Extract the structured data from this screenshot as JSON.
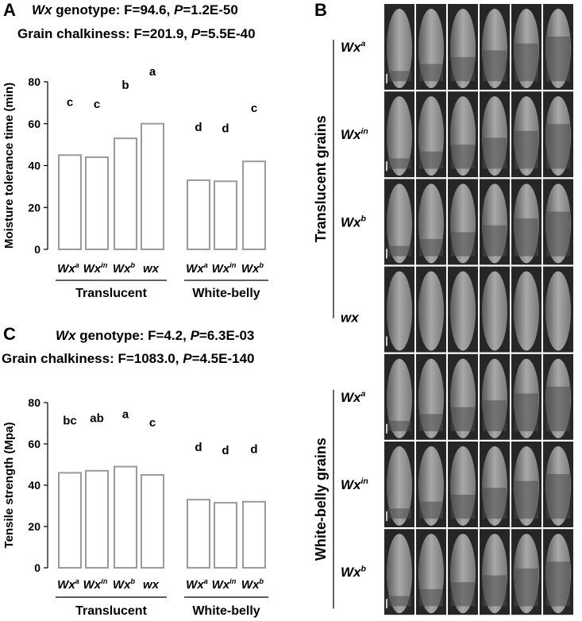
{
  "chart_data": [
    {
      "type": "bar",
      "panel_label": "A",
      "annotations": [
        [
          {
            "text": "Wx",
            "italic": true
          },
          {
            "text": " genotype: F=94.6, ",
            "italic": false
          },
          {
            "text": "P",
            "italic": true
          },
          {
            "text": "=1.2E-50",
            "italic": false
          }
        ],
        [
          {
            "text": "Grain chalkiness: F=201.9, ",
            "italic": false
          },
          {
            "text": "P",
            "italic": true
          },
          {
            "text": "=5.5E-40",
            "italic": false
          }
        ]
      ],
      "ylabel": "Moisture tolerance time (min)",
      "ylim": [
        0,
        80
      ],
      "yticks": [
        0,
        20,
        40,
        60,
        80
      ],
      "color": "#ffffff",
      "edge_color": "#9a9a9a",
      "groups": [
        {
          "name": "Translucent",
          "categories": [
            {
              "base": "Wx",
              "sup": "a"
            },
            {
              "base": "Wx",
              "sup": "in"
            },
            {
              "base": "Wx",
              "sup": "b"
            },
            {
              "base": "wx",
              "sup": null
            }
          ],
          "values": [
            45,
            44,
            53,
            60
          ],
          "letters": [
            "c",
            "c",
            "b",
            "a"
          ]
        },
        {
          "name": "White-belly",
          "categories": [
            {
              "base": "Wx",
              "sup": "a"
            },
            {
              "base": "Wx",
              "sup": "in"
            },
            {
              "base": "Wx",
              "sup": "b"
            }
          ],
          "values": [
            33,
            32.5,
            42
          ],
          "letters": [
            "d",
            "d",
            "c"
          ]
        }
      ]
    },
    {
      "type": "bar",
      "panel_label": "C",
      "annotations": [
        [
          {
            "text": "Wx",
            "italic": true
          },
          {
            "text": " genotype: F=4.2, ",
            "italic": false
          },
          {
            "text": "P",
            "italic": true
          },
          {
            "text": "=6.3E-03",
            "italic": false
          }
        ],
        [
          {
            "text": "Grain chalkiness: F=1083.0, ",
            "italic": false
          },
          {
            "text": "P",
            "italic": true
          },
          {
            "text": "=4.5E-140",
            "italic": false
          }
        ]
      ],
      "ylabel": "Tensile strength (Mpa)",
      "ylim": [
        0,
        80
      ],
      "yticks": [
        0,
        20,
        40,
        60,
        80
      ],
      "color": "#ffffff",
      "edge_color": "#9a9a9a",
      "groups": [
        {
          "name": "Translucent",
          "categories": [
            {
              "base": "Wx",
              "sup": "a"
            },
            {
              "base": "Wx",
              "sup": "in"
            },
            {
              "base": "Wx",
              "sup": "b"
            },
            {
              "base": "wx",
              "sup": null
            }
          ],
          "values": [
            46,
            47,
            49,
            45
          ],
          "letters": [
            "bc",
            "ab",
            "a",
            "c"
          ]
        },
        {
          "name": "White-belly",
          "categories": [
            {
              "base": "Wx",
              "sup": "a"
            },
            {
              "base": "Wx",
              "sup": "in"
            },
            {
              "base": "Wx",
              "sup": "b"
            }
          ],
          "values": [
            33,
            31.5,
            32
          ],
          "letters": [
            "d",
            "d",
            "d"
          ]
        }
      ]
    }
  ],
  "image_panel": {
    "panel_label": "B",
    "groups": [
      {
        "name": "Translucent grains",
        "rows": [
          {
            "base": "Wx",
            "sup": "a"
          },
          {
            "base": "Wx",
            "sup": "in"
          },
          {
            "base": "Wx",
            "sup": "b"
          },
          {
            "base": "wx",
            "sup": null
          }
        ]
      },
      {
        "name": "White-belly grains",
        "rows": [
          {
            "base": "Wx",
            "sup": "a"
          },
          {
            "base": "Wx",
            "sup": "in"
          },
          {
            "base": "Wx",
            "sup": "b"
          }
        ]
      }
    ]
  }
}
